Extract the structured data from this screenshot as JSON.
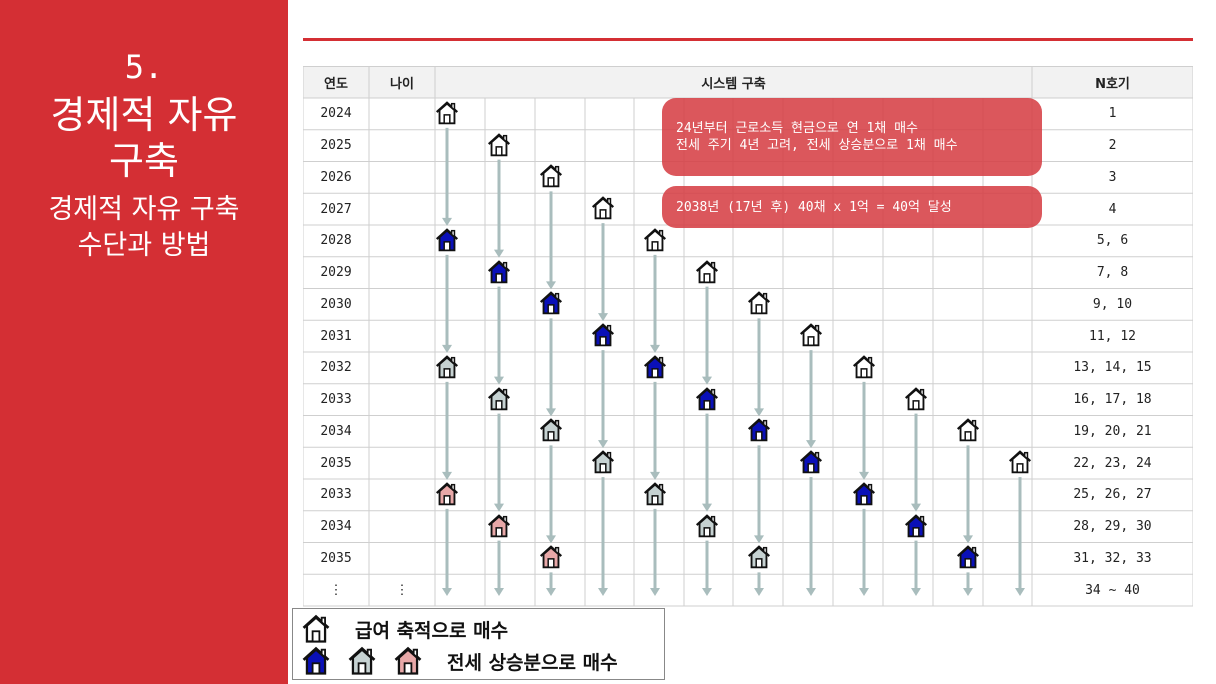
{
  "sidebar": {
    "number": "5.",
    "title_line1": "경제적 자유",
    "title_line2": "구축",
    "subtitle_line1": "경제적 자유 구축",
    "subtitle_line2": "수단과 방법"
  },
  "table": {
    "headers": {
      "year": "연도",
      "age": "나이",
      "system": "시스템 구축",
      "count": "N호기"
    },
    "rows": [
      {
        "year": "2024",
        "age": "",
        "count": "1"
      },
      {
        "year": "2025",
        "age": "",
        "count": "2"
      },
      {
        "year": "2026",
        "age": "",
        "count": "3"
      },
      {
        "year": "2027",
        "age": "",
        "count": "4"
      },
      {
        "year": "2028",
        "age": "",
        "count": "5, 6"
      },
      {
        "year": "2029",
        "age": "",
        "count": "7, 8"
      },
      {
        "year": "2030",
        "age": "",
        "count": "9, 10"
      },
      {
        "year": "2031",
        "age": "",
        "count": "11, 12"
      },
      {
        "year": "2032",
        "age": "",
        "count": "13, 14, 15"
      },
      {
        "year": "2033",
        "age": "",
        "count": "16, 17, 18"
      },
      {
        "year": "2034",
        "age": "",
        "count": "19, 20, 21"
      },
      {
        "year": "2035",
        "age": "",
        "count": "22, 23, 24"
      },
      {
        "year": "2033",
        "age": "",
        "count": "25, 26, 27"
      },
      {
        "year": "2034",
        "age": "",
        "count": "28, 29, 30"
      },
      {
        "year": "2035",
        "age": "",
        "count": "31, 32, 33"
      },
      {
        "year": "⋮",
        "age": "⋮",
        "count": "34 ~ 40"
      }
    ]
  },
  "notes": {
    "note1_line1": "24년부터 근로소득 현금으로 연 1채 매수",
    "note1_line2": "전세 주기 4년 고려, 전세 상승분으로 1채 매수",
    "note2": "2038년 (17년  후) 40채 x 1억 = 40억 달성"
  },
  "legend": {
    "salary": "급여 축적으로 매수",
    "jeonse": "전세 상승분으로 매수"
  },
  "houses": [
    {
      "col": 0,
      "row": 0,
      "type": "white"
    },
    {
      "col": 1,
      "row": 1,
      "type": "white"
    },
    {
      "col": 2,
      "row": 2,
      "type": "white"
    },
    {
      "col": 3,
      "row": 3,
      "type": "white"
    },
    {
      "col": 4,
      "row": 4,
      "type": "white"
    },
    {
      "col": 5,
      "row": 5,
      "type": "white"
    },
    {
      "col": 6,
      "row": 6,
      "type": "white"
    },
    {
      "col": 7,
      "row": 7,
      "type": "white"
    },
    {
      "col": 8,
      "row": 8,
      "type": "white"
    },
    {
      "col": 9,
      "row": 9,
      "type": "white"
    },
    {
      "col": 10,
      "row": 10,
      "type": "white"
    },
    {
      "col": 11,
      "row": 11,
      "type": "white"
    },
    {
      "col": 0,
      "row": 4,
      "type": "blue"
    },
    {
      "col": 1,
      "row": 5,
      "type": "blue"
    },
    {
      "col": 2,
      "row": 6,
      "type": "blue"
    },
    {
      "col": 3,
      "row": 7,
      "type": "blue"
    },
    {
      "col": 4,
      "row": 8,
      "type": "blue"
    },
    {
      "col": 5,
      "row": 9,
      "type": "blue"
    },
    {
      "col": 6,
      "row": 10,
      "type": "blue"
    },
    {
      "col": 7,
      "row": 11,
      "type": "blue"
    },
    {
      "col": 8,
      "row": 12,
      "type": "blue"
    },
    {
      "col": 9,
      "row": 13,
      "type": "blue"
    },
    {
      "col": 10,
      "row": 14,
      "type": "blue"
    },
    {
      "col": 0,
      "row": 8,
      "type": "gray"
    },
    {
      "col": 1,
      "row": 9,
      "type": "gray"
    },
    {
      "col": 2,
      "row": 10,
      "type": "gray"
    },
    {
      "col": 3,
      "row": 11,
      "type": "gray"
    },
    {
      "col": 4,
      "row": 12,
      "type": "gray"
    },
    {
      "col": 5,
      "row": 13,
      "type": "gray"
    },
    {
      "col": 6,
      "row": 14,
      "type": "gray"
    },
    {
      "col": 0,
      "row": 12,
      "type": "pink"
    },
    {
      "col": 1,
      "row": 13,
      "type": "pink"
    },
    {
      "col": 2,
      "row": 14,
      "type": "pink"
    }
  ],
  "colors": {
    "accent": "#d42f34",
    "white": "#ffffff",
    "blue": "#0a10b8",
    "gray": "#c6d2d2",
    "pink": "#e8a8a8",
    "arrow": "#a9bdbd"
  }
}
